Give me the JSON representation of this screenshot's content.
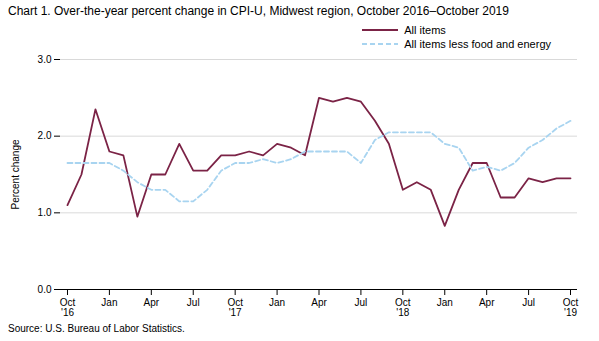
{
  "chart_data": {
    "type": "line",
    "title": "Chart 1. Over-the-year percent change in CPI-U, Midwest region, October 2016–October 2019",
    "caption": "Source: U.S. Bureau of Labor Statistics.",
    "y_label": "Percent change",
    "categories": [
      "Oct\n'16",
      null,
      null,
      "Jan",
      null,
      null,
      "Apr",
      null,
      null,
      "Jul",
      null,
      null,
      "Oct\n'17",
      null,
      null,
      "Jan",
      null,
      null,
      "Apr",
      null,
      null,
      "Jul",
      null,
      null,
      "Oct\n'18",
      null,
      null,
      "Jan",
      null,
      null,
      "Apr",
      null,
      null,
      "Jul",
      null,
      null,
      "Oct\n'19"
    ],
    "series": [
      {
        "name": "All items",
        "color": "#7B2346",
        "line_style": "solid",
        "values": [
          1.1,
          1.5,
          2.35,
          1.8,
          1.75,
          0.95,
          1.5,
          1.5,
          1.9,
          1.55,
          1.55,
          1.75,
          1.75,
          1.8,
          1.75,
          1.9,
          1.85,
          1.75,
          2.5,
          2.45,
          2.5,
          2.45,
          2.2,
          1.9,
          1.3,
          1.4,
          1.3,
          0.83,
          1.3,
          1.65,
          1.65,
          1.2,
          1.2,
          1.45,
          1.4,
          1.45,
          1.45
        ]
      },
      {
        "name": "All items less food and energy",
        "color": "#A8D4F0",
        "line_style": "dashed",
        "values": [
          1.65,
          1.65,
          1.65,
          1.65,
          1.55,
          1.4,
          1.3,
          1.3,
          1.15,
          1.15,
          1.3,
          1.55,
          1.65,
          1.65,
          1.7,
          1.65,
          1.7,
          1.8,
          1.8,
          1.8,
          1.8,
          1.65,
          1.95,
          2.05,
          2.05,
          2.05,
          2.05,
          1.9,
          1.85,
          1.55,
          1.6,
          1.55,
          1.65,
          1.85,
          1.95,
          2.1,
          2.2
        ]
      }
    ],
    "ylim": [
      0.0,
      3.0
    ],
    "yticks": [
      {
        "value": 0.0,
        "label": "0.0"
      },
      {
        "value": 1.0,
        "label": "1.0"
      },
      {
        "value": 2.0,
        "label": "2.0"
      },
      {
        "value": 3.0,
        "label": "3.0"
      }
    ],
    "grid": true,
    "legend": "top right"
  }
}
